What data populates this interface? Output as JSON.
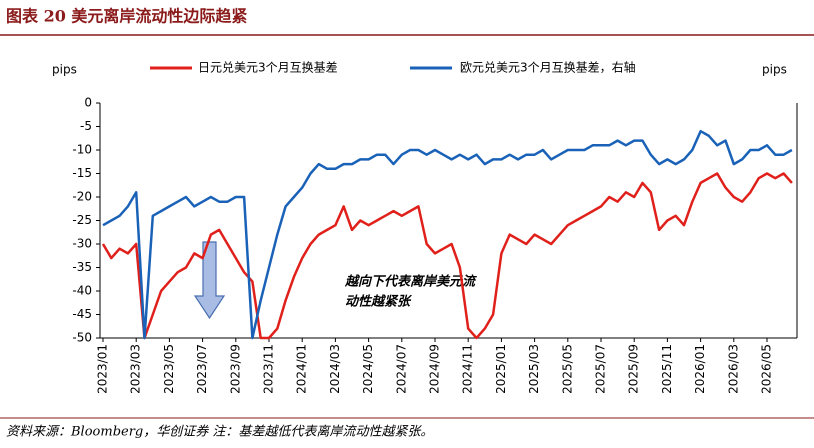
{
  "header": {
    "title": "图表 20  美元离岸流动性边际趋紧"
  },
  "chart_data": {
    "type": "line",
    "ylabel": "pips",
    "y2label": "pips",
    "annotation": [
      "越向下代表离岸美元流",
      "动性越紧张"
    ],
    "categories": [
      "2023/01",
      null,
      null,
      null,
      "2023/03",
      null,
      null,
      null,
      "2023/05",
      null,
      null,
      null,
      "2023/07",
      null,
      null,
      null,
      "2023/09",
      null,
      null,
      null,
      "2023/11",
      null,
      null,
      null,
      "2024/01",
      null,
      null,
      null,
      "2024/03",
      null,
      null,
      null,
      "2024/05",
      null,
      null,
      null,
      "2024/07",
      null,
      null,
      null,
      "2024/09",
      null,
      null,
      null,
      "2024/11",
      null,
      null,
      null,
      "2025/01",
      null,
      null,
      null,
      "2025/03",
      null,
      null,
      null,
      "2025/05",
      null,
      null,
      null,
      "2025/07",
      null,
      null,
      null,
      "2025/09",
      null,
      null,
      null,
      "2025/11",
      null,
      null,
      null,
      "2026/01",
      null,
      null,
      null,
      "2026/03",
      null,
      null,
      null,
      "2026/05",
      null,
      null,
      null
    ],
    "series": [
      {
        "name": "日元兑美元3个月互换基差",
        "color": "#e0201b",
        "values": [
          -30,
          -33,
          -31,
          -32,
          -30,
          -50,
          -45,
          -40,
          -38,
          -36,
          -35,
          -32,
          -33,
          -28,
          -27,
          -30,
          -33,
          -36,
          -38,
          -50,
          -50,
          -48,
          -42,
          -37,
          -33,
          -30,
          -28,
          -27,
          -26,
          -22,
          -27,
          -25,
          -26,
          -25,
          -24,
          -23,
          -24,
          -23,
          -22,
          -30,
          -32,
          -31,
          -30,
          -35,
          -48,
          -50,
          -48,
          -45,
          -32,
          -28,
          -29,
          -30,
          -28,
          -29,
          -30,
          -28,
          -26,
          -25,
          -24,
          -23,
          -22,
          -20,
          -21,
          -19,
          -20,
          -17,
          -19,
          -27,
          -25,
          -24,
          -26,
          -21,
          -17,
          -16,
          -15,
          -18,
          -20,
          -21,
          -19,
          -16,
          -15,
          -16,
          -15,
          -17
        ]
      },
      {
        "name": "欧元兑美元3个月互换基差，右轴",
        "color": "#1a62b8",
        "axis": "y2",
        "values": [
          -26,
          -25,
          -24,
          -22,
          -19,
          -50,
          -24,
          -23,
          -22,
          -21,
          -20,
          -22,
          -21,
          -20,
          -21,
          -21,
          -20,
          -20,
          -50,
          -42,
          -35,
          -28,
          -22,
          -20,
          -18,
          -15,
          -13,
          -14,
          -14,
          -13,
          -13,
          -12,
          -12,
          -11,
          -11,
          -13,
          -11,
          -10,
          -10,
          -11,
          -10,
          -11,
          -12,
          -11,
          -12,
          -11,
          -13,
          -12,
          -12,
          -11,
          -12,
          -11,
          -11,
          -10,
          -12,
          -11,
          -10,
          -10,
          -10,
          -9,
          -9,
          -9,
          -8,
          -9,
          -8,
          -8,
          -11,
          -13,
          -12,
          -13,
          -12,
          -10,
          -6,
          -7,
          -9,
          -8,
          -13,
          -12,
          -10,
          -10,
          -9,
          -11,
          -11,
          -10
        ]
      }
    ],
    "ylim": [
      -50,
      0
    ],
    "yticks": [
      0,
      -5,
      -10,
      -15,
      -20,
      -25,
      -30,
      -35,
      -40,
      -45,
      -50
    ],
    "y2lim": [
      -50,
      0
    ]
  },
  "footer": {
    "source": "资料来源：Bloomberg，华创证券 注：基差越低代表离岸流动性越紧张。"
  }
}
